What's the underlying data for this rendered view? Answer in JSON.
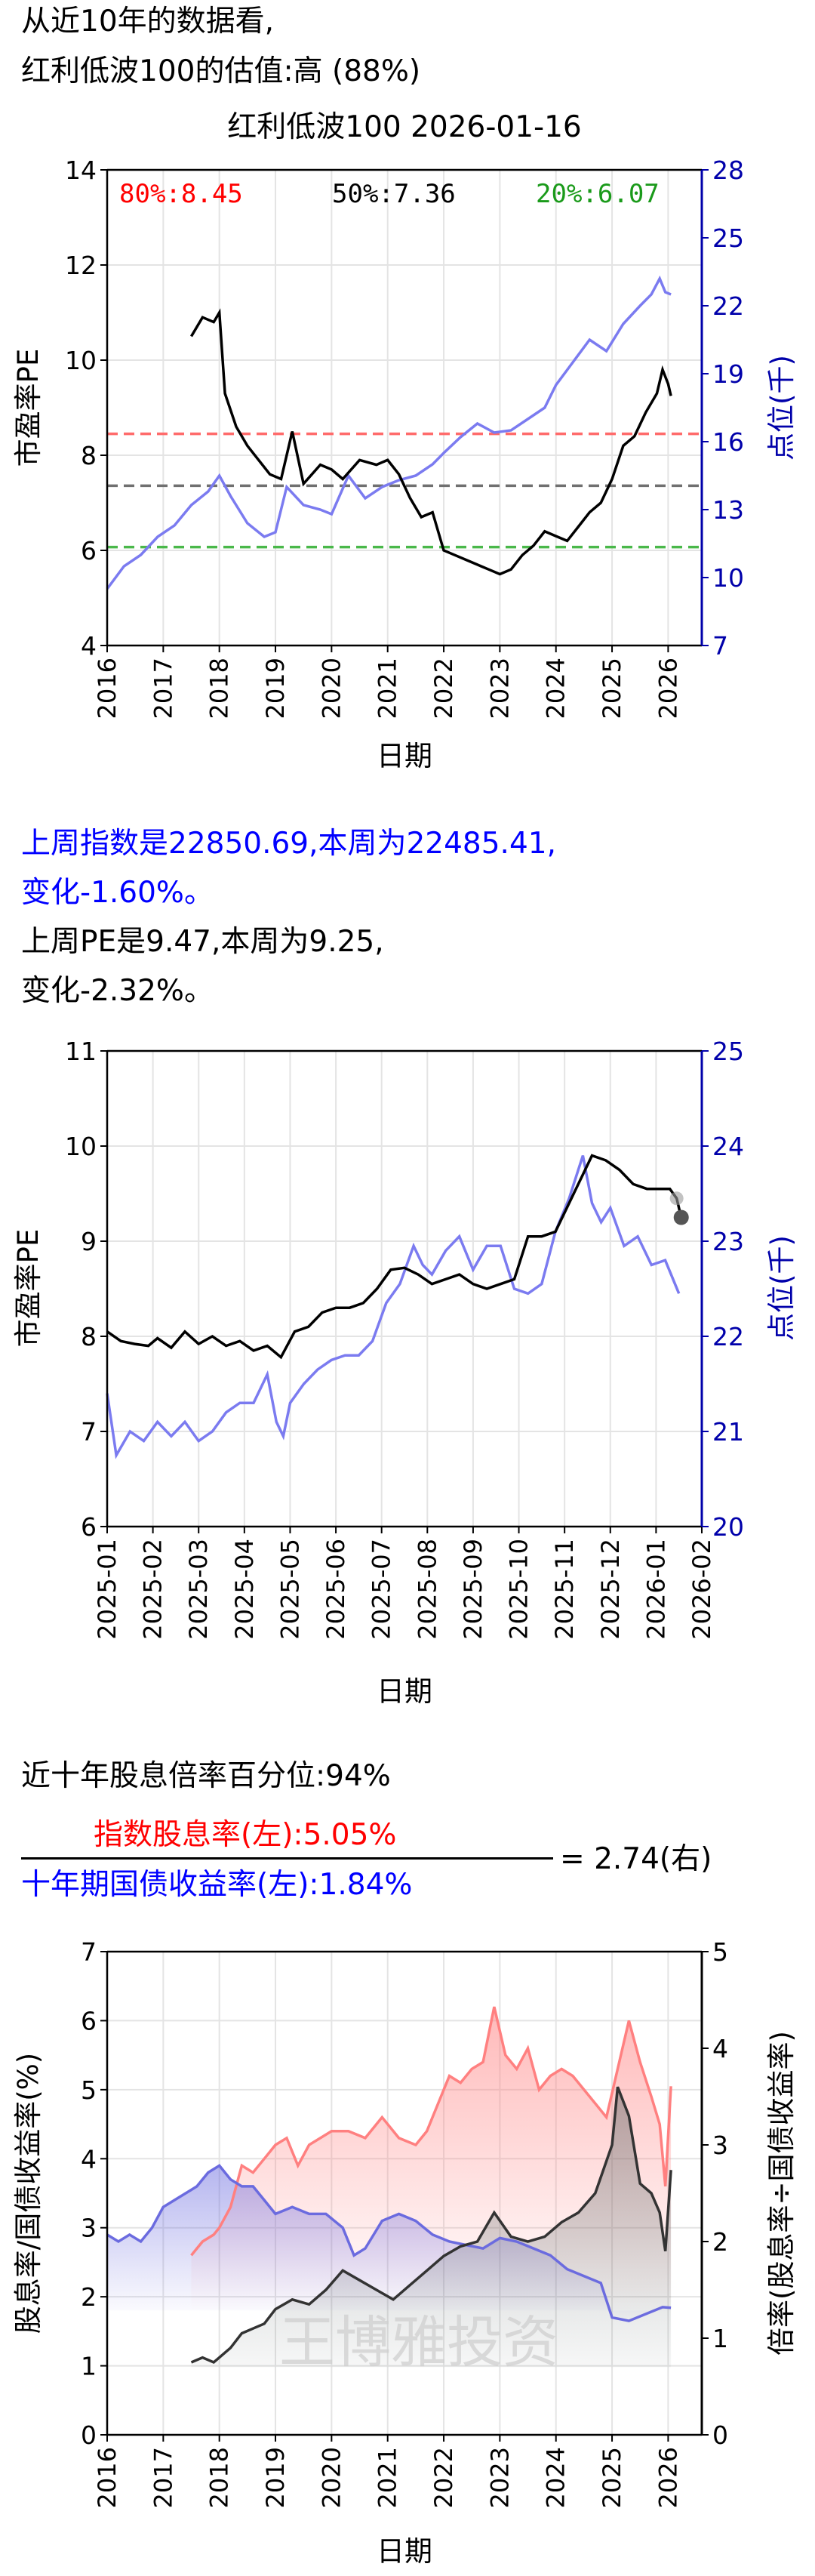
{
  "header": {
    "line1": "从近10年的数据看,",
    "line2": "红利低波100的估值:高 (88%)"
  },
  "weekly": {
    "idx_line1": "上周指数是22850.69,本周为22485.41,",
    "idx_line2": "变化-1.60%。",
    "pe_line1": "上周PE是9.47,本周为9.25,",
    "pe_line2": "变化-2.32%。"
  },
  "yield": {
    "percentile": "近十年股息倍率百分位:94%",
    "numerator": "指数股息率(左):5.05%",
    "denominator": "十年期国债收益率(左):1.84%",
    "result": "= 2.74(右)"
  },
  "colors": {
    "pe": "#000000",
    "index": "#7b7bf0",
    "p80": "#ff6b6b",
    "p50": "#707070",
    "p20": "#4ab84a",
    "axis_right": "#0000aa",
    "div_yield": "#ff8080",
    "bond_yield": "#6b6bdf",
    "ratio": "#333333"
  },
  "chart_data": [
    {
      "type": "line",
      "title": "红利低波100 2026-01-16",
      "xlabel": "日期",
      "ylabel": "市盈率PE",
      "ylabel_right": "点位(千)",
      "xticks": [
        "2016",
        "2017",
        "2018",
        "2019",
        "2020",
        "2021",
        "2022",
        "2023",
        "2024",
        "2025",
        "2026"
      ],
      "yticks": [
        "4",
        "6",
        "8",
        "10",
        "12",
        "14"
      ],
      "yticks_right": [
        "7",
        "10",
        "13",
        "16",
        "19",
        "22",
        "25",
        "28"
      ],
      "xlim": [
        2016,
        2026.6
      ],
      "ylim": [
        4,
        14
      ],
      "ylim_right": [
        7,
        28
      ],
      "grid": true,
      "percentile_labels": [
        "80%:8.45",
        "50%:7.36",
        "20%:6.07"
      ],
      "percentile_values": [
        8.45,
        7.36,
        6.07
      ],
      "series": [
        {
          "axis": "left",
          "x": [
            2017.5,
            2017.7,
            2017.9,
            2018.0,
            2018.1,
            2018.3,
            2018.5,
            2018.7,
            2018.9,
            2019.1,
            2019.3,
            2019.5,
            2019.8,
            2020.0,
            2020.2,
            2020.5,
            2020.8,
            2021.0,
            2021.2,
            2021.4,
            2021.6,
            2021.8,
            2022.0,
            2022.2,
            2022.4,
            2022.6,
            2022.8,
            2023.0,
            2023.2,
            2023.4,
            2023.6,
            2023.8,
            2024.0,
            2024.2,
            2024.4,
            2024.6,
            2024.8,
            2025.0,
            2025.2,
            2025.4,
            2025.6,
            2025.8,
            2025.9,
            2026.0,
            2026.05
          ],
          "values": [
            10.5,
            10.9,
            10.8,
            11.0,
            9.3,
            8.6,
            8.2,
            7.9,
            7.6,
            7.5,
            8.5,
            7.4,
            7.8,
            7.7,
            7.5,
            7.9,
            7.8,
            7.9,
            7.6,
            7.1,
            6.7,
            6.8,
            6.0,
            5.9,
            5.8,
            5.7,
            5.6,
            5.5,
            5.6,
            5.9,
            6.1,
            6.4,
            6.3,
            6.2,
            6.5,
            6.8,
            7.0,
            7.5,
            8.2,
            8.4,
            8.9,
            9.3,
            9.8,
            9.5,
            9.25
          ]
        },
        {
          "axis": "right",
          "x": [
            2016.0,
            2016.3,
            2016.6,
            2016.9,
            2017.2,
            2017.5,
            2017.8,
            2018.0,
            2018.2,
            2018.5,
            2018.8,
            2019.0,
            2019.2,
            2019.5,
            2019.8,
            2020.0,
            2020.3,
            2020.6,
            2020.9,
            2021.2,
            2021.5,
            2021.8,
            2022.0,
            2022.3,
            2022.6,
            2022.9,
            2023.2,
            2023.5,
            2023.8,
            2024.0,
            2024.3,
            2024.6,
            2024.9,
            2025.2,
            2025.5,
            2025.7,
            2025.85,
            2025.95,
            2026.05
          ],
          "values": [
            9.5,
            10.5,
            11.0,
            11.8,
            12.3,
            13.2,
            13.8,
            14.5,
            13.6,
            12.4,
            11.8,
            12.0,
            14.0,
            13.2,
            13.0,
            12.8,
            14.5,
            13.5,
            14.0,
            14.3,
            14.5,
            15.0,
            15.5,
            16.2,
            16.8,
            16.4,
            16.5,
            17.0,
            17.5,
            18.5,
            19.5,
            20.5,
            20.0,
            21.2,
            22.0,
            22.5,
            23.2,
            22.6,
            22.5
          ]
        }
      ]
    },
    {
      "type": "line",
      "xlabel": "日期",
      "ylabel": "市盈率PE",
      "ylabel_right": "点位(千)",
      "xticks": [
        "2025-01",
        "2025-02",
        "2025-03",
        "2025-04",
        "2025-05",
        "2025-06",
        "2025-07",
        "2025-08",
        "2025-09",
        "2025-10",
        "2025-11",
        "2025-12",
        "2026-01",
        "2026-02"
      ],
      "yticks": [
        "6",
        "7",
        "8",
        "9",
        "10",
        "11"
      ],
      "yticks_right": [
        "20",
        "21",
        "22",
        "23",
        "24",
        "25"
      ],
      "ylim": [
        6,
        11
      ],
      "ylim_right": [
        20,
        25
      ],
      "grid": true,
      "series": [
        {
          "axis": "left",
          "x": [
            0,
            0.3,
            0.6,
            0.9,
            1.1,
            1.4,
            1.7,
            2.0,
            2.3,
            2.6,
            2.9,
            3.2,
            3.5,
            3.8,
            4.1,
            4.4,
            4.7,
            5.0,
            5.3,
            5.6,
            5.9,
            6.2,
            6.5,
            6.8,
            7.1,
            7.4,
            7.7,
            8.0,
            8.3,
            8.6,
            8.9,
            9.2,
            9.5,
            9.8,
            10.1,
            10.4,
            10.6,
            10.9,
            11.2,
            11.5,
            11.8,
            12.1,
            12.3,
            12.45,
            12.55
          ],
          "values": [
            8.05,
            7.95,
            7.92,
            7.9,
            7.98,
            7.88,
            8.05,
            7.92,
            8.0,
            7.9,
            7.95,
            7.85,
            7.9,
            7.78,
            8.05,
            8.1,
            8.25,
            8.3,
            8.3,
            8.35,
            8.5,
            8.7,
            8.72,
            8.65,
            8.55,
            8.6,
            8.65,
            8.55,
            8.5,
            8.55,
            8.6,
            9.05,
            9.05,
            9.1,
            9.4,
            9.7,
            9.9,
            9.85,
            9.75,
            9.6,
            9.55,
            9.55,
            9.55,
            9.45,
            9.25
          ]
        },
        {
          "axis": "right",
          "x": [
            0,
            0.2,
            0.5,
            0.8,
            1.1,
            1.4,
            1.7,
            2.0,
            2.3,
            2.6,
            2.9,
            3.2,
            3.5,
            3.7,
            3.85,
            4.0,
            4.3,
            4.6,
            4.9,
            5.2,
            5.5,
            5.8,
            6.1,
            6.4,
            6.7,
            6.9,
            7.1,
            7.4,
            7.7,
            8.0,
            8.3,
            8.6,
            8.9,
            9.2,
            9.5,
            9.8,
            10.1,
            10.4,
            10.6,
            10.8,
            11.0,
            11.3,
            11.6,
            11.9,
            12.2,
            12.5
          ],
          "values": [
            21.4,
            20.75,
            21.0,
            20.9,
            21.1,
            20.95,
            21.1,
            20.9,
            21.0,
            21.2,
            21.3,
            21.3,
            21.6,
            21.1,
            20.95,
            21.3,
            21.5,
            21.65,
            21.75,
            21.8,
            21.8,
            21.95,
            22.35,
            22.55,
            22.95,
            22.75,
            22.65,
            22.9,
            23.05,
            22.7,
            22.95,
            22.95,
            22.5,
            22.45,
            22.55,
            23.1,
            23.45,
            23.9,
            23.4,
            23.2,
            23.35,
            22.95,
            23.05,
            22.75,
            22.8,
            22.45
          ]
        }
      ]
    },
    {
      "type": "area",
      "xlabel": "日期",
      "ylabel": "股息率/国债收益率(%)",
      "ylabel_right": "倍率(股息率÷国债收益率)",
      "xticks": [
        "2016",
        "2017",
        "2018",
        "2019",
        "2020",
        "2021",
        "2022",
        "2023",
        "2024",
        "2025",
        "2026"
      ],
      "yticks": [
        "0",
        "1",
        "2",
        "3",
        "4",
        "5",
        "6",
        "7"
      ],
      "yticks_right": [
        "0",
        "1",
        "2",
        "3",
        "4",
        "5"
      ],
      "ylim": [
        0,
        7
      ],
      "ylim_right": [
        0,
        5
      ],
      "grid": true,
      "watermark": "王博雅投资",
      "series": [
        {
          "name": "指数股息率",
          "axis": "left",
          "x": [
            2017.5,
            2017.7,
            2017.9,
            2018.0,
            2018.2,
            2018.4,
            2018.6,
            2018.8,
            2019.0,
            2019.2,
            2019.4,
            2019.6,
            2019.8,
            2020.0,
            2020.3,
            2020.6,
            2020.9,
            2021.2,
            2021.5,
            2021.7,
            2021.9,
            2022.1,
            2022.3,
            2022.5,
            2022.7,
            2022.9,
            2023.1,
            2023.3,
            2023.5,
            2023.7,
            2023.9,
            2024.1,
            2024.3,
            2024.5,
            2024.7,
            2024.9,
            2025.1,
            2025.3,
            2025.5,
            2025.7,
            2025.85,
            2025.95,
            2026.05
          ],
          "values": [
            2.6,
            2.8,
            2.9,
            3.0,
            3.3,
            3.9,
            3.8,
            4.0,
            4.2,
            4.3,
            3.9,
            4.2,
            4.3,
            4.4,
            4.4,
            4.3,
            4.6,
            4.3,
            4.2,
            4.4,
            4.8,
            5.2,
            5.1,
            5.3,
            5.4,
            6.2,
            5.5,
            5.3,
            5.6,
            5.0,
            5.2,
            5.3,
            5.2,
            5.0,
            4.8,
            4.6,
            5.3,
            6.0,
            5.4,
            4.9,
            4.5,
            3.6,
            5.05
          ]
        },
        {
          "name": "十年期国债收益率",
          "axis": "left",
          "x": [
            2016.0,
            2016.2,
            2016.4,
            2016.6,
            2016.8,
            2017.0,
            2017.2,
            2017.4,
            2017.6,
            2017.8,
            2018.0,
            2018.2,
            2018.4,
            2018.6,
            2018.8,
            2019.0,
            2019.3,
            2019.6,
            2019.9,
            2020.2,
            2020.4,
            2020.6,
            2020.9,
            2021.2,
            2021.5,
            2021.8,
            2022.1,
            2022.4,
            2022.7,
            2023.0,
            2023.3,
            2023.6,
            2023.9,
            2024.2,
            2024.5,
            2024.8,
            2025.0,
            2025.3,
            2025.6,
            2025.9,
            2026.05
          ],
          "values": [
            2.9,
            2.8,
            2.9,
            2.8,
            3.0,
            3.3,
            3.4,
            3.5,
            3.6,
            3.8,
            3.9,
            3.7,
            3.6,
            3.6,
            3.4,
            3.2,
            3.3,
            3.2,
            3.2,
            3.0,
            2.6,
            2.7,
            3.1,
            3.2,
            3.1,
            2.9,
            2.8,
            2.75,
            2.7,
            2.85,
            2.8,
            2.7,
            2.6,
            2.4,
            2.3,
            2.2,
            1.7,
            1.65,
            1.75,
            1.85,
            1.84
          ]
        },
        {
          "name": "倍率",
          "axis": "right",
          "x": [
            2017.5,
            2017.7,
            2017.9,
            2018.0,
            2018.2,
            2018.4,
            2018.6,
            2018.8,
            2019.0,
            2019.3,
            2019.6,
            2019.9,
            2020.2,
            2020.5,
            2020.8,
            2021.1,
            2021.4,
            2021.7,
            2022.0,
            2022.3,
            2022.6,
            2022.9,
            2023.2,
            2023.5,
            2023.8,
            2024.1,
            2024.4,
            2024.7,
            2025.0,
            2025.1,
            2025.3,
            2025.5,
            2025.7,
            2025.85,
            2025.95,
            2026.05
          ],
          "values": [
            0.75,
            0.8,
            0.75,
            0.8,
            0.9,
            1.05,
            1.1,
            1.15,
            1.3,
            1.4,
            1.35,
            1.5,
            1.7,
            1.6,
            1.5,
            1.4,
            1.55,
            1.7,
            1.85,
            1.95,
            2.0,
            2.3,
            2.05,
            2.0,
            2.05,
            2.2,
            2.3,
            2.5,
            3.0,
            3.6,
            3.3,
            2.6,
            2.5,
            2.3,
            1.9,
            2.74
          ]
        }
      ]
    }
  ]
}
